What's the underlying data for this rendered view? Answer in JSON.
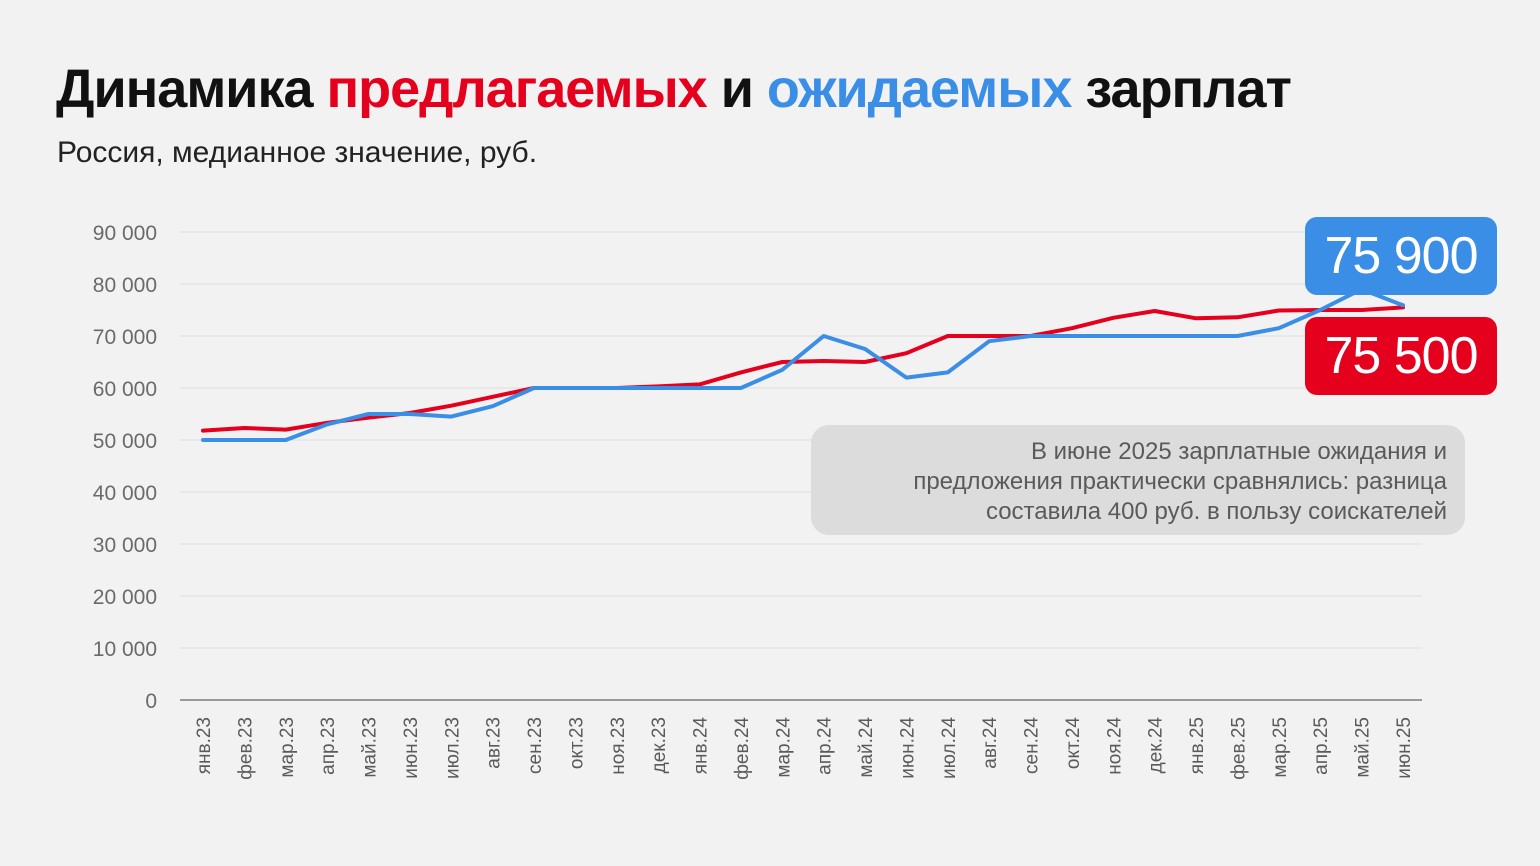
{
  "header": {
    "title_pre": "Динамика ",
    "title_red": "предлагаемых",
    "title_mid": " и ",
    "title_blue": "ожидаемых",
    "title_post": " зарплат",
    "subtitle": "Россия, медианное значение, руб."
  },
  "colors": {
    "offered": "#e5001e",
    "expected": "#3a8ee6",
    "background": "#f2f2f2",
    "note_bg": "#dcdcdc"
  },
  "chart_data": {
    "type": "line",
    "title": "Динамика предлагаемых и ожидаемых зарплат",
    "subtitle": "Россия, медианное значение, руб.",
    "x": [
      "янв.23",
      "фев.23",
      "мар.23",
      "апр.23",
      "май.23",
      "июн.23",
      "июл.23",
      "авг.23",
      "сен.23",
      "окт.23",
      "ноя.23",
      "дек.23",
      "янв.24",
      "фев.24",
      "мар.24",
      "апр.24",
      "май.24",
      "июн.24",
      "июл.24",
      "авг.24",
      "сен.24",
      "окт.24",
      "ноя.24",
      "дек.24",
      "янв.25",
      "фев.25",
      "мар.25",
      "апр.25",
      "май.25",
      "июн.25"
    ],
    "ylim": [
      0,
      90000
    ],
    "yticks": [
      0,
      10000,
      20000,
      30000,
      40000,
      50000,
      60000,
      70000,
      80000,
      90000
    ],
    "ytick_labels": [
      "0",
      "10 000",
      "20 000",
      "30 000",
      "40 000",
      "50 000",
      "60 000",
      "70 000",
      "80 000",
      "90 000"
    ],
    "grid": true,
    "series": [
      {
        "key": "offered",
        "values": [
          51800,
          52300,
          52000,
          53300,
          54300,
          55200,
          56600,
          58300,
          60000,
          60000,
          60000,
          60300,
          60700,
          63000,
          65000,
          65200,
          65000,
          66700,
          70000,
          70000,
          70000,
          71500,
          73500,
          74800,
          73400,
          73600,
          74900,
          75000,
          75000,
          75500
        ]
      },
      {
        "key": "expected",
        "values": [
          50000,
          50000,
          50000,
          53000,
          55000,
          55000,
          54500,
          56500,
          60000,
          60000,
          60000,
          60000,
          60000,
          60000,
          63500,
          70000,
          67500,
          62000,
          63000,
          69000,
          70000,
          70000,
          70000,
          70000,
          70000,
          70000,
          71500,
          75000,
          79000,
          75900
        ]
      }
    ],
    "callouts": [
      {
        "series": "expected",
        "text": "75 900"
      },
      {
        "series": "offered",
        "text": "75 500"
      }
    ],
    "annotation": {
      "lines": [
        "В июне 2025 зарплатные ожидания и",
        "предложения практически сравнялись: разница",
        "составила 400 руб. в пользу соискателей"
      ]
    }
  }
}
